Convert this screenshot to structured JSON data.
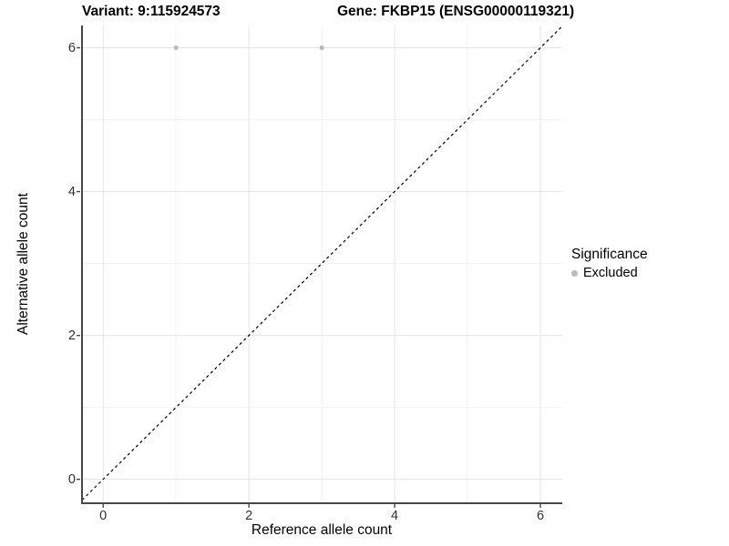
{
  "titles": {
    "variant": "Variant: 9:115924573",
    "gene": "Gene: FKBP15 (ENSG00000119321)"
  },
  "chart_data": {
    "type": "scatter",
    "title": "Variant: 9:115924573  /  Gene: FKBP15 (ENSG00000119321)",
    "xlabel": "Reference allele count",
    "ylabel": "Alternative allele count",
    "xticks": [
      0,
      2,
      4,
      6
    ],
    "yticks": [
      0,
      2,
      4,
      6
    ],
    "xminor": [
      1,
      3,
      5
    ],
    "yminor": [
      1,
      3,
      5
    ],
    "xlim": [
      -0.29,
      6.3
    ],
    "ylim": [
      -0.32,
      6.31
    ],
    "grid": "major+minor",
    "series": [
      {
        "name": "Excluded",
        "points": [
          {
            "x": 1,
            "y": 6
          },
          {
            "x": 3,
            "y": 6
          }
        ]
      }
    ],
    "identity_line": {
      "style": "dashed",
      "slope": 1,
      "intercept": 0
    },
    "legend": {
      "position": "right",
      "title": "Significance",
      "items": [
        {
          "label": "Excluded",
          "color": "#bcbcbc"
        }
      ]
    },
    "colors": {
      "point": "#bcbcbc",
      "grid_major": "#e4e4e4",
      "grid_minor": "#f1f1f1",
      "axis": "#474747",
      "identity_line": "#000000",
      "background": "#ffffff"
    }
  }
}
